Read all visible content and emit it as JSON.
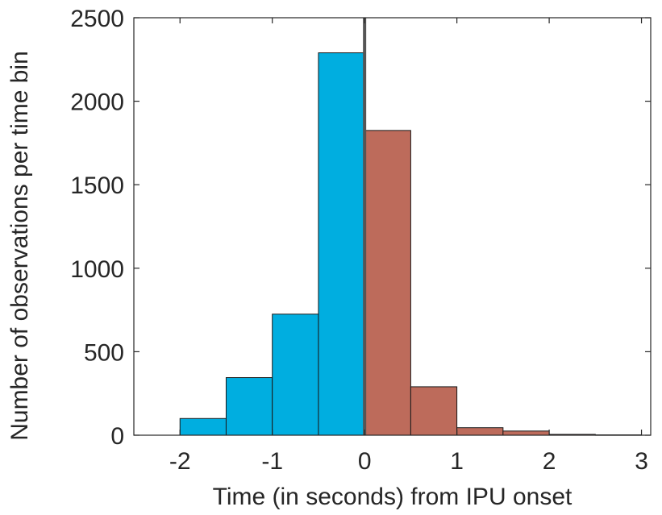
{
  "chart_data": {
    "type": "bar",
    "title": "",
    "xlabel": "Time (in seconds) from IPU onset",
    "ylabel": "Number of observations per time bin",
    "xlim": [
      -2.5,
      3.1
    ],
    "ylim": [
      0,
      2500
    ],
    "xticks": [
      -2,
      -1,
      0,
      1,
      2,
      3
    ],
    "xtick_labels": [
      "-2",
      "-1",
      "0",
      "1",
      "2",
      "3"
    ],
    "yticks": [
      0,
      500,
      1000,
      1500,
      2000,
      2500
    ],
    "ytick_labels": [
      "0",
      "500",
      "1000",
      "1500",
      "2000",
      "2500"
    ],
    "grid": false,
    "legend": "none",
    "reference_line_x": 0,
    "bins": [
      {
        "x0": -2.0,
        "x1": -1.5,
        "value": 100,
        "color": "#00aee0"
      },
      {
        "x0": -1.5,
        "x1": -1.0,
        "value": 345,
        "color": "#00aee0"
      },
      {
        "x0": -1.0,
        "x1": -0.5,
        "value": 725,
        "color": "#00aee0"
      },
      {
        "x0": -0.5,
        "x1": 0.0,
        "value": 2290,
        "color": "#00aee0"
      },
      {
        "x0": 0.0,
        "x1": 0.5,
        "value": 1825,
        "color": "#bd6b5b"
      },
      {
        "x0": 0.5,
        "x1": 1.0,
        "value": 290,
        "color": "#bd6b5b"
      },
      {
        "x0": 1.0,
        "x1": 1.5,
        "value": 45,
        "color": "#bd6b5b"
      },
      {
        "x0": 1.5,
        "x1": 2.0,
        "value": 25,
        "color": "#bd6b5b"
      },
      {
        "x0": 2.0,
        "x1": 2.5,
        "value": 5,
        "color": "#bd6b5b"
      },
      {
        "x0": 2.5,
        "x1": 3.0,
        "value": 2,
        "color": "#bd6b5b"
      }
    ]
  }
}
